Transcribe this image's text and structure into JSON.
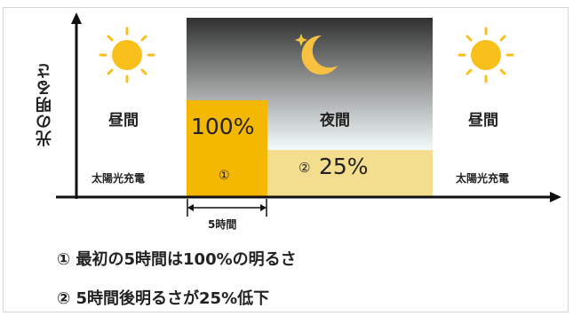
{
  "y_axis_label": "光の明るさ",
  "periods": {
    "day_left": "昼間",
    "night": "夜間",
    "day_right": "昼間"
  },
  "solar_charging": {
    "left": "太陽光充電",
    "right": "太陽光充電"
  },
  "phases": {
    "phase1": {
      "marker": "①",
      "brightness": "100%"
    },
    "phase2": {
      "marker": "②",
      "brightness": "25%"
    }
  },
  "duration_label": "5時間",
  "notes": [
    "① 最初の5時間は100%の明るさ",
    "② 5時間後明るさが25%低下"
  ],
  "colors": {
    "phase1_fill": "#F5B800",
    "phase2_fill": "#F3DD8E",
    "night_band": "#F0F8F8",
    "night_sky_dark": "#303030",
    "sun": "#F9C01B",
    "moon": "#F7C242"
  }
}
